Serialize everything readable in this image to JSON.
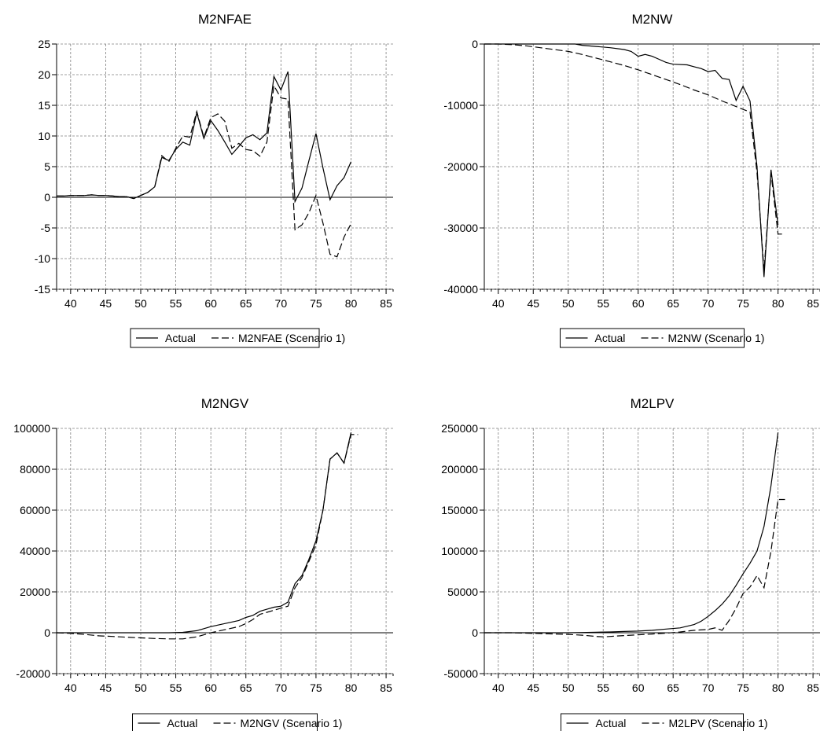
{
  "colors": {
    "line": "#000000",
    "grid": "#808080",
    "background": "#ffffff"
  },
  "chart_data": [
    {
      "type": "line",
      "title": "M2NFAE",
      "xticks": [
        "40",
        "45",
        "50",
        "55",
        "60",
        "65",
        "70",
        "75",
        "80",
        "85"
      ],
      "yticks": [
        "25",
        "20",
        "15",
        "10",
        "5",
        "0",
        "-5",
        "-10",
        "-15"
      ],
      "xlim": [
        38,
        86
      ],
      "ylim": [
        -15,
        25
      ],
      "legend": {
        "placement": "bottom",
        "entries": [
          "Actual",
          "M2NFAE (Scenario 1)"
        ]
      },
      "series": [
        {
          "name": "Actual",
          "style": "solid",
          "x": [
            38,
            39,
            40,
            41,
            42,
            43,
            44,
            45,
            46,
            47,
            48,
            49,
            50,
            51,
            52,
            53,
            54,
            55,
            56,
            57,
            58,
            59,
            60,
            61,
            62,
            63,
            64,
            65,
            66,
            67,
            68,
            69,
            70,
            71,
            72,
            73,
            74,
            75,
            76,
            77,
            78,
            79,
            80
          ],
          "y": [
            0.2,
            0.2,
            0.3,
            0.3,
            0.3,
            0.4,
            0.3,
            0.3,
            0.2,
            0.1,
            0.1,
            -0.2,
            0.3,
            0.8,
            1.7,
            6.5,
            6.0,
            7.8,
            9.0,
            8.5,
            13.8,
            9.6,
            12.5,
            10.9,
            9.0,
            7.0,
            8.3,
            9.7,
            10.2,
            9.4,
            10.5,
            19.7,
            17.5,
            20.5,
            -0.7,
            1.5,
            6.0,
            10.4,
            4.8,
            -0.4,
            1.9,
            3.2,
            5.8
          ]
        },
        {
          "name": "M2NFAE (Scenario 1)",
          "style": "dashed",
          "x": [
            38,
            39,
            40,
            41,
            42,
            43,
            44,
            45,
            46,
            47,
            48,
            49,
            50,
            51,
            52,
            53,
            54,
            55,
            56,
            57,
            58,
            59,
            60,
            61,
            62,
            63,
            64,
            65,
            66,
            67,
            68,
            69,
            70,
            71,
            72,
            73,
            74,
            75,
            76,
            77,
            78,
            79,
            80
          ],
          "y": [
            0.2,
            0.2,
            0.3,
            0.3,
            0.3,
            0.4,
            0.3,
            0.3,
            0.2,
            0.1,
            0.1,
            -0.2,
            0.3,
            0.8,
            1.7,
            6.8,
            5.8,
            8.0,
            10.0,
            9.8,
            14.0,
            9.8,
            13.0,
            13.6,
            12.4,
            8.0,
            8.8,
            7.8,
            7.6,
            6.7,
            9.0,
            18.2,
            16.2,
            16.0,
            -5.3,
            -4.5,
            -2.5,
            0.3,
            -4.2,
            -9.3,
            -9.7,
            -6.5,
            -4.3
          ]
        }
      ]
    },
    {
      "type": "line",
      "title": "M2NW",
      "xticks": [
        "40",
        "45",
        "50",
        "55",
        "60",
        "65",
        "70",
        "75",
        "80",
        "85"
      ],
      "yticks": [
        "0",
        "-10000",
        "-20000",
        "-30000",
        "-40000"
      ],
      "xlim": [
        38,
        86
      ],
      "ylim": [
        -40000,
        0
      ],
      "legend": {
        "placement": "bottom",
        "entries": [
          "Actual",
          "M2NW (Scenario 1)"
        ]
      },
      "series": [
        {
          "name": "Actual",
          "style": "solid",
          "x": [
            38,
            40,
            42,
            44,
            46,
            48,
            50,
            51,
            52,
            54,
            56,
            58,
            59,
            60,
            61,
            62,
            63,
            64,
            65,
            67,
            68,
            69,
            70,
            71,
            72,
            73,
            74,
            75,
            76,
            77,
            78,
            79,
            80
          ],
          "y": [
            0,
            0,
            0,
            0,
            0,
            0,
            0,
            0,
            -200,
            -400,
            -600,
            -900,
            -1200,
            -2000,
            -1700,
            -2000,
            -2500,
            -3000,
            -3300,
            -3400,
            -3700,
            -4000,
            -4500,
            -4300,
            -5600,
            -5800,
            -9200,
            -6900,
            -9300,
            -20000,
            -38000,
            -20500,
            -29500
          ]
        },
        {
          "name": "M2NW (Scenario 1)",
          "style": "dashed",
          "x": [
            38,
            40,
            42,
            44,
            46,
            48,
            50,
            52,
            54,
            56,
            58,
            60,
            62,
            64,
            66,
            68,
            70,
            72,
            74,
            76,
            77,
            78,
            79,
            80,
            81
          ],
          "y": [
            0,
            0,
            -100,
            -300,
            -600,
            -900,
            -1200,
            -1700,
            -2300,
            -2900,
            -3500,
            -4200,
            -5000,
            -5800,
            -6600,
            -7500,
            -8300,
            -9300,
            -10200,
            -11100,
            -21000,
            -37000,
            -21000,
            -31000,
            -31000
          ]
        }
      ]
    },
    {
      "type": "line",
      "title": "M2NGV",
      "xticks": [
        "40",
        "45",
        "50",
        "55",
        "60",
        "65",
        "70",
        "75",
        "80",
        "85"
      ],
      "yticks": [
        "100000",
        "80000",
        "60000",
        "40000",
        "20000",
        "0",
        "-20000"
      ],
      "xlim": [
        38,
        86
      ],
      "ylim": [
        -20000,
        100000
      ],
      "legend": {
        "placement": "bottom",
        "entries": [
          "Actual",
          "M2NGV (Scenario 1)"
        ]
      },
      "series": [
        {
          "name": "Actual",
          "style": "solid",
          "x": [
            38,
            40,
            42,
            44,
            46,
            48,
            50,
            52,
            54,
            56,
            58,
            59,
            60,
            62,
            64,
            65,
            66,
            67,
            68,
            69,
            70,
            71,
            72,
            73,
            74,
            75,
            76,
            77,
            78,
            79,
            80
          ],
          "y": [
            0,
            0,
            0,
            0,
            0,
            0,
            0,
            0,
            0,
            200,
            1000,
            2000,
            3000,
            4500,
            6000,
            7500,
            8500,
            10500,
            11500,
            12500,
            13000,
            15000,
            24000,
            28000,
            36000,
            45000,
            60000,
            85000,
            88000,
            83000,
            98000
          ]
        },
        {
          "name": "M2NGV (Scenario 1)",
          "style": "dashed",
          "x": [
            38,
            40,
            42,
            44,
            46,
            48,
            50,
            52,
            54,
            56,
            58,
            60,
            62,
            64,
            65,
            66,
            67,
            68,
            69,
            70,
            71,
            72,
            73,
            74,
            75,
            76,
            77,
            78,
            79,
            80,
            81
          ],
          "y": [
            0,
            -300,
            -800,
            -1500,
            -1800,
            -2200,
            -2500,
            -2800,
            -3000,
            -3000,
            -2000,
            0,
            1500,
            3000,
            4500,
            6500,
            9000,
            10000,
            11000,
            12000,
            13000,
            22000,
            27000,
            35000,
            43000,
            60000,
            85000,
            88000,
            83000,
            97000,
            97000
          ]
        }
      ]
    },
    {
      "type": "line",
      "title": "M2LPV",
      "xticks": [
        "40",
        "45",
        "50",
        "55",
        "60",
        "65",
        "70",
        "75",
        "80",
        "85"
      ],
      "yticks": [
        "250000",
        "200000",
        "150000",
        "100000",
        "50000",
        "0",
        "-50000"
      ],
      "xlim": [
        38,
        86
      ],
      "ylim": [
        -50000,
        250000
      ],
      "legend": {
        "placement": "bottom",
        "entries": [
          "Actual",
          "M2LPV (Scenario 1)"
        ]
      },
      "series": [
        {
          "name": "Actual",
          "style": "solid",
          "x": [
            38,
            40,
            42,
            44,
            46,
            48,
            50,
            52,
            54,
            56,
            58,
            60,
            62,
            64,
            66,
            68,
            69,
            70,
            71,
            72,
            73,
            74,
            75,
            76,
            77,
            78,
            79,
            80
          ],
          "y": [
            0,
            0,
            0,
            0,
            0,
            0,
            0,
            300,
            700,
            1000,
            1500,
            2000,
            3000,
            4500,
            6000,
            10000,
            14000,
            20000,
            27000,
            35000,
            45000,
            58000,
            72000,
            85000,
            100000,
            130000,
            180000,
            245000
          ]
        },
        {
          "name": "M2LPV (Scenario 1)",
          "style": "dashed",
          "x": [
            38,
            40,
            42,
            44,
            46,
            48,
            50,
            52,
            54,
            55,
            56,
            58,
            60,
            62,
            64,
            66,
            68,
            70,
            71,
            72,
            73,
            74,
            75,
            76,
            77,
            78,
            79,
            80,
            81
          ],
          "y": [
            0,
            0,
            0,
            -500,
            -1000,
            -1500,
            -2000,
            -3000,
            -4500,
            -5000,
            -4500,
            -3500,
            -2500,
            -1500,
            -500,
            1000,
            3000,
            4000,
            6000,
            3000,
            15000,
            30000,
            48000,
            56000,
            70000,
            55000,
            100000,
            163000,
            163000
          ]
        }
      ]
    }
  ]
}
